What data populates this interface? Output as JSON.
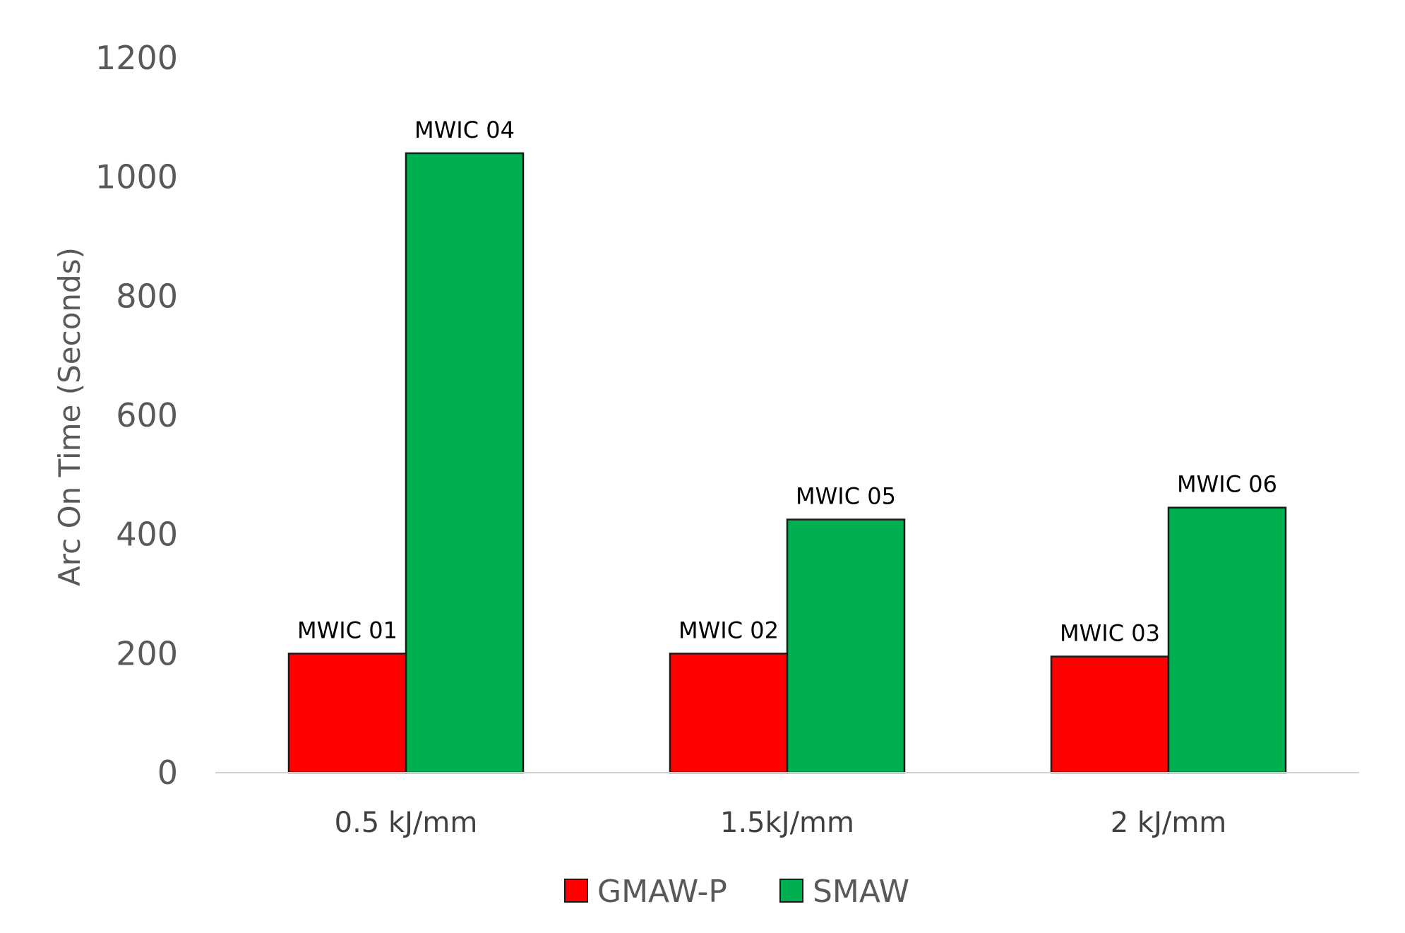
{
  "chart_data": {
    "type": "bar",
    "title": "",
    "xlabel": "",
    "ylabel": "Arc On Time (Seconds)",
    "ylim": [
      0,
      1200
    ],
    "yticks": [
      0,
      200,
      400,
      600,
      800,
      1000,
      1200
    ],
    "grid": false,
    "legend": "bottom",
    "categories": [
      "0.5 kJ/mm",
      "1.5kJ/mm",
      "2 kJ/mm"
    ],
    "series": [
      {
        "name": "GMAW-P",
        "color": "#ff0000",
        "values": [
          200,
          200,
          195
        ],
        "labels": [
          "MWIC 01",
          "MWIC 02",
          "MWIC 03"
        ]
      },
      {
        "name": "SMAW",
        "color": "#00b050",
        "values": [
          1040,
          425,
          445
        ],
        "labels": [
          "MWIC 04",
          "MWIC 05",
          "MWIC 06"
        ]
      }
    ]
  }
}
